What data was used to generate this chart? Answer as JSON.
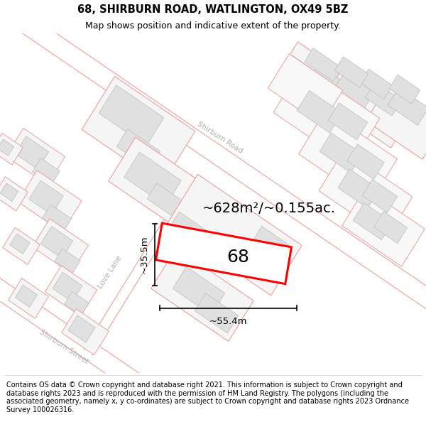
{
  "title_line1": "68, SHIRBURN ROAD, WATLINGTON, OX49 5BZ",
  "title_line2": "Map shows position and indicative extent of the property.",
  "footer_text": "Contains OS data © Crown copyright and database right 2021. This information is subject to Crown copyright and database rights 2023 and is reproduced with the permission of HM Land Registry. The polygons (including the associated geometry, namely x, y co-ordinates) are subject to Crown copyright and database rights 2023 Ordnance Survey 100026316.",
  "area_label": "~628m²/~0.155ac.",
  "plot_number": "68",
  "dim_width": "~55.4m",
  "dim_height": "~35.5m",
  "road_label1": "Shirburn Road",
  "road_label2": "Shirburn Street",
  "road_label3": "Love Lane",
  "bg_color": "#ffffff",
  "building_fill": "#e0e0e0",
  "building_edge": "#c8a0a0",
  "road_line_color": "#e8a0a0",
  "plot_outline_color": "#ff0000",
  "title_fontsize": 10.5,
  "subtitle_fontsize": 9,
  "footer_fontsize": 7,
  "area_label_fontsize": 14,
  "plot_label_fontsize": 18,
  "dim_fontsize": 9.5,
  "road_label_fontsize": 7.5
}
